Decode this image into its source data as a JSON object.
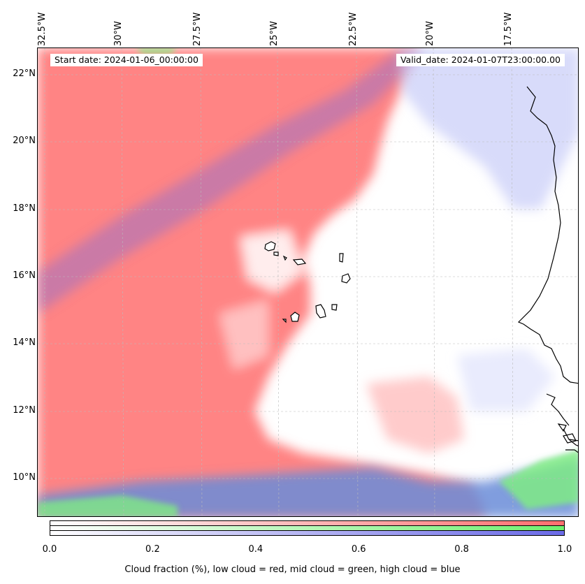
{
  "map": {
    "longitude_labels": [
      "32.5°W",
      "30°W",
      "27.5°W",
      "25°W",
      "22.5°W",
      "20°W",
      "17.5°W"
    ],
    "latitude_labels": [
      "22°N",
      "20°N",
      "18°N",
      "16°N",
      "14°N",
      "12°N",
      "10°N"
    ],
    "start_date": "Start date: 2024-01-06_00:00:00",
    "valid_date": "Valid_date: 2024-01-07T23:00:00.00",
    "layers": {
      "low_cloud": "#ff7a7a",
      "mid_cloud": "#7ef07e",
      "high_cloud": "#7b7bea"
    }
  },
  "colorbar": {
    "ticks": [
      "0.0",
      "0.2",
      "0.4",
      "0.6",
      "0.8",
      "1.0"
    ],
    "label": "Cloud fraction (%), low cloud = red, mid cloud = green, high cloud = blue",
    "rows": [
      {
        "name": "low",
        "color": "#ff6f6f"
      },
      {
        "name": "mid",
        "color": "#6ff06f"
      },
      {
        "name": "high",
        "color": "#6b6be8"
      }
    ]
  }
}
